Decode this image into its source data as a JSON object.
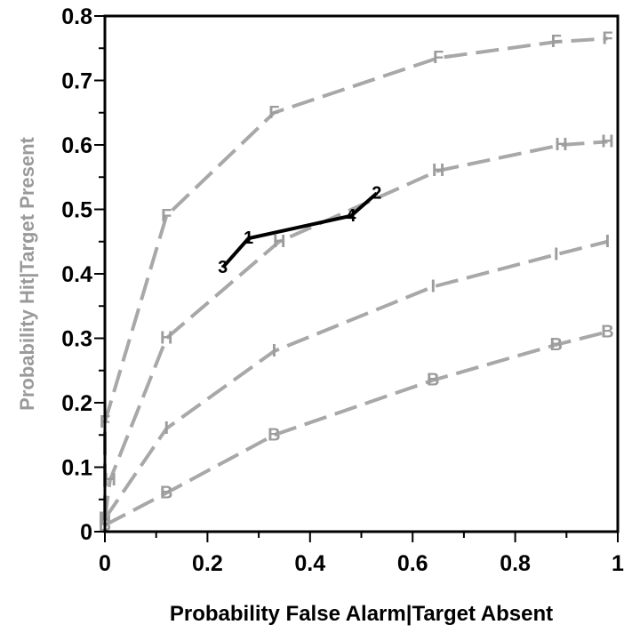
{
  "chart_data": {
    "type": "line",
    "title": "",
    "xlabel": "Probability False Alarm|Target Absent",
    "ylabel": "Probability Hit|Target Present",
    "xlim": [
      0,
      1
    ],
    "ylim": [
      0,
      0.8
    ],
    "xticks": [
      "0",
      "0.2",
      "0.4",
      "0.6",
      "0.8",
      "1"
    ],
    "yticks": [
      "0",
      "0.1",
      "0.2",
      "0.3",
      "0.4",
      "0.5",
      "0.6",
      "0.7",
      "0.8"
    ],
    "xtick_values": [
      0,
      0.2,
      0.4,
      0.6,
      0.8,
      1
    ],
    "ytick_values": [
      0,
      0.1,
      0.2,
      0.3,
      0.4,
      0.5,
      0.6,
      0.7,
      0.8
    ],
    "grid": false,
    "series": [
      {
        "name": "F",
        "color": "#a8a8a8",
        "style": "dashed",
        "x": [
          0.0,
          0.0,
          0.12,
          0.33,
          0.65,
          0.88,
          0.98
        ],
        "y": [
          0.02,
          0.17,
          0.49,
          0.65,
          0.735,
          0.76,
          0.765
        ],
        "markers": [
          "F",
          "F",
          "F",
          "F",
          "F",
          "F",
          "F"
        ]
      },
      {
        "name": "H",
        "color": "#a8a8a8",
        "style": "dashed",
        "x": [
          0.0,
          0.01,
          0.12,
          0.34,
          0.65,
          0.89,
          0.98
        ],
        "y": [
          0.02,
          0.08,
          0.3,
          0.45,
          0.56,
          0.6,
          0.605
        ],
        "markers": [
          "H",
          "H",
          "H",
          "H",
          "H",
          "H",
          "H"
        ]
      },
      {
        "name": "I",
        "color": "#a8a8a8",
        "style": "dashed",
        "x": [
          0.0,
          0.12,
          0.33,
          0.64,
          0.88,
          0.98
        ],
        "y": [
          0.02,
          0.16,
          0.28,
          0.38,
          0.43,
          0.45
        ],
        "markers": [
          "I",
          "I",
          "I",
          "I",
          "I",
          "I"
        ]
      },
      {
        "name": "B",
        "color": "#a8a8a8",
        "style": "dashed",
        "x": [
          0.0,
          0.12,
          0.33,
          0.64,
          0.88,
          0.98
        ],
        "y": [
          0.01,
          0.06,
          0.15,
          0.235,
          0.29,
          0.31
        ],
        "markers": [
          "B",
          "B",
          "B",
          "B",
          "B",
          "B"
        ]
      },
      {
        "name": "",
        "color": "#000000",
        "style": "solid",
        "x": [
          0.23,
          0.28,
          0.48,
          0.53
        ],
        "y": [
          0.41,
          0.455,
          0.49,
          0.525
        ],
        "markers": [
          "3",
          "1",
          "4",
          "2"
        ]
      }
    ]
  }
}
